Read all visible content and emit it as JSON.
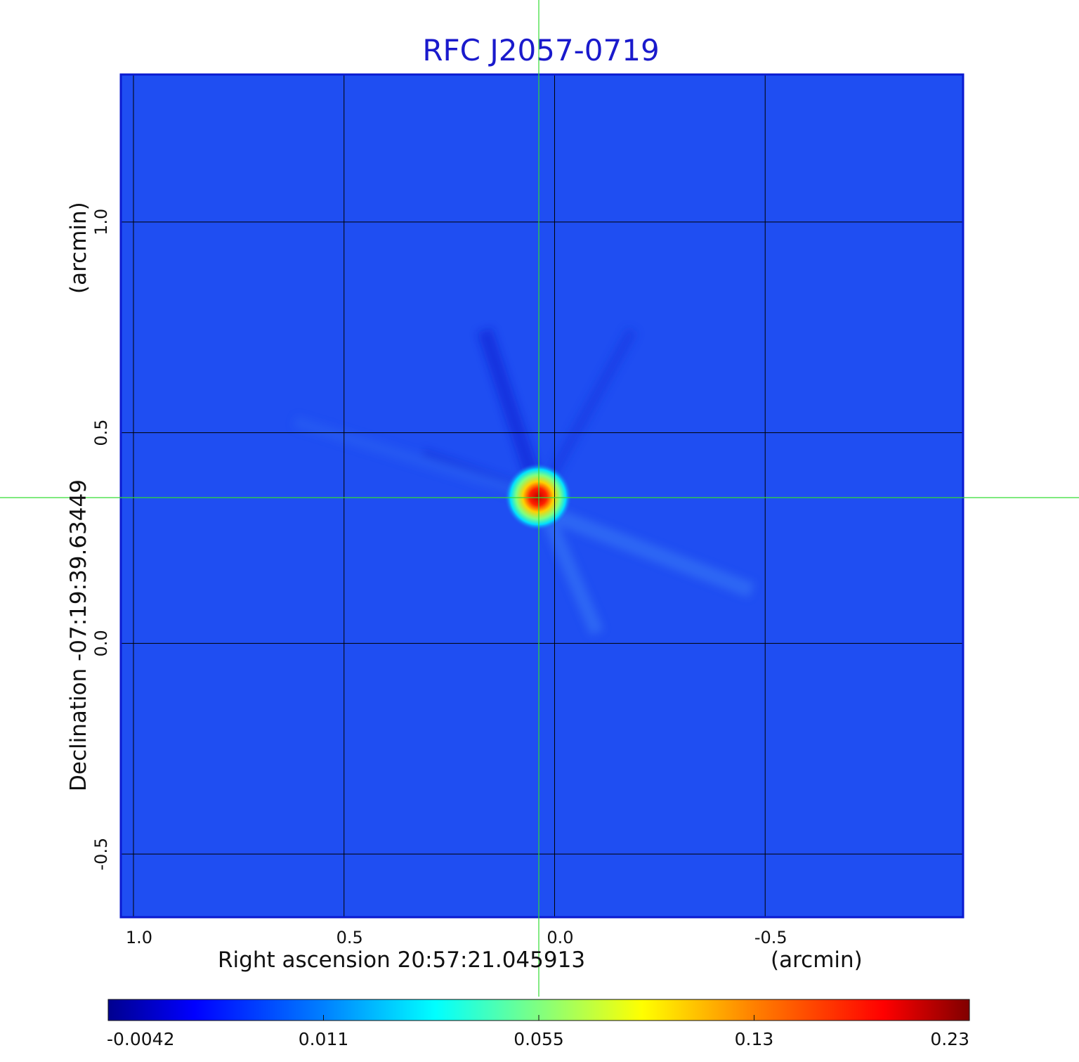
{
  "chart_data": {
    "type": "heatmap",
    "title": "RFC J2057-0719",
    "xlabel": "Right ascension  20:57:21.045913",
    "xunit": "(arcmin)",
    "ylabel": "Declination  -07:19:39.63449",
    "yunit": "(arcmin)",
    "xlim": [
      1.03,
      -0.97
    ],
    "ylim": [
      -0.65,
      1.35
    ],
    "x_ticks": [
      {
        "value": 1.0,
        "label": "1.0"
      },
      {
        "value": 0.5,
        "label": "0.5"
      },
      {
        "value": 0.0,
        "label": "0.0"
      },
      {
        "value": -0.5,
        "label": "-0.5"
      }
    ],
    "y_ticks": [
      {
        "value": 1.0,
        "label": "1.0"
      },
      {
        "value": 0.5,
        "label": "0.5"
      },
      {
        "value": 0.0,
        "label": "0.0"
      },
      {
        "value": -0.5,
        "label": "-0.5"
      }
    ],
    "grid": true,
    "crosshair": {
      "x": 0.035,
      "y": 0.34
    },
    "peak": {
      "x": 0.035,
      "y": 0.34,
      "value": 0.23
    },
    "colorbar": {
      "ticks": [
        "-0.0042",
        "0.011",
        "0.055",
        "0.13",
        "0.23"
      ],
      "min": -0.0042,
      "max": 0.23
    },
    "colormap": "jet"
  },
  "colors": {
    "title": "#1a1acc",
    "background_field": "#1f4ef2",
    "crosshair": "#33dd33",
    "grid": "#000000"
  }
}
